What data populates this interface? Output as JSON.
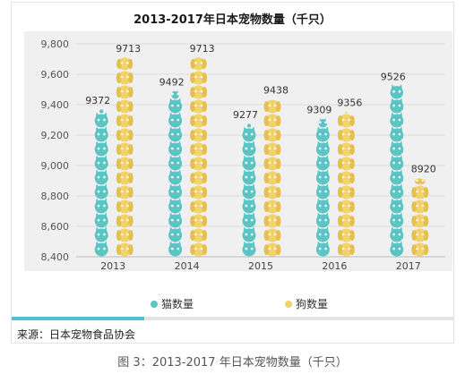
{
  "chart_data": {
    "type": "bar",
    "title": "2013-2017年日本宠物数量（千只）",
    "categories": [
      "2013",
      "2014",
      "2015",
      "2016",
      "2017"
    ],
    "series": [
      {
        "name": "猫数量",
        "values": [
          9372,
          9492,
          9277,
          9309,
          9526
        ],
        "color": "#5bc4c4"
      },
      {
        "name": "狗数量",
        "values": [
          9713,
          9713,
          9438,
          9356,
          8920
        ],
        "color": "#f0d36a"
      }
    ],
    "yticks": [
      "8,400",
      "8,600",
      "8,800",
      "9,000",
      "9,200",
      "9,400",
      "9,600",
      "9,800"
    ],
    "ylim": [
      8400,
      9800
    ],
    "grid": true,
    "legend": "bottom"
  },
  "source": "来源：日本宠物食品协会",
  "caption": "图 3：2013-2017 年日本宠物数量（千只）",
  "colors": {
    "accent": "#4fc3cf"
  }
}
